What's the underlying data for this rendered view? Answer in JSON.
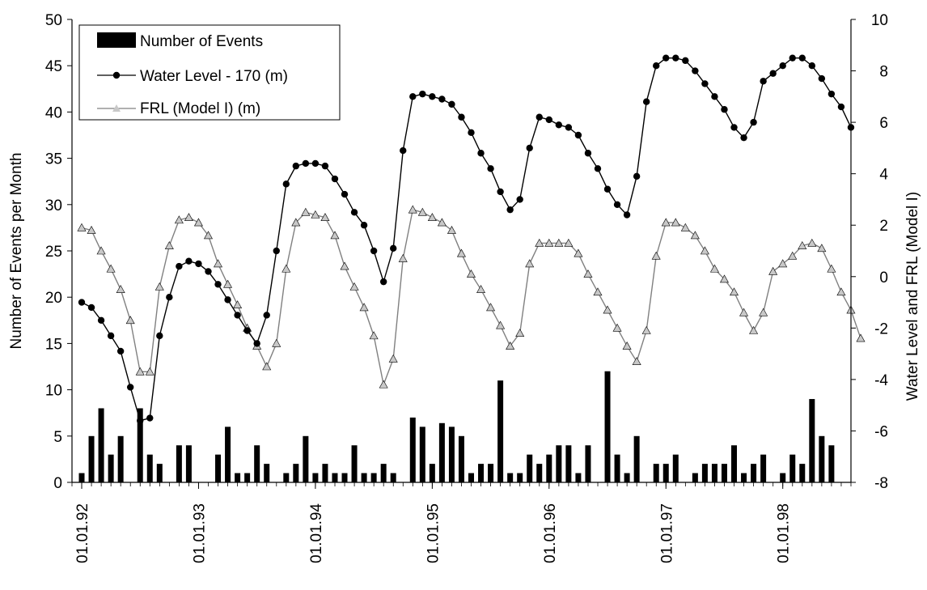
{
  "chart_data": {
    "type": "bar+line",
    "title": "",
    "ylabel_left": "Number of Events per Month",
    "ylabel_right": "Water Level and FRL (Model I)",
    "ylim_left": [
      0,
      50
    ],
    "ylim_right": [
      -8,
      10
    ],
    "yticks_left": [
      "0",
      "5",
      "10",
      "15",
      "20",
      "25",
      "30",
      "35",
      "40",
      "45",
      "50"
    ],
    "yticks_right": [
      "-8",
      "-6",
      "-4",
      "-2",
      "0",
      "2",
      "4",
      "6",
      "8",
      "10"
    ],
    "x_tick_labels": [
      "01.01.92",
      "01.01.93",
      "01.01.94",
      "01.01.95",
      "01.01.96",
      "01.01.97",
      "01.01.98"
    ],
    "x_start_month": "1992-01",
    "grid": false,
    "legend_position": "top-left",
    "colors": {
      "bars": "#000000",
      "water_level": "#000000",
      "frl": "#808080",
      "frl_marker": "#c8c8c8"
    },
    "legend": {
      "events": "Number of Events",
      "water": "Water Level - 170 (m)",
      "frl": "FRL (Model I) (m)"
    },
    "series": [
      {
        "name": "Number of Events",
        "kind": "bar",
        "axis": "left",
        "values": [
          1,
          5,
          8,
          3,
          5,
          0,
          8,
          3,
          2,
          0,
          4,
          4,
          0,
          0,
          3,
          6,
          1,
          1,
          4,
          2,
          0,
          1,
          2,
          5,
          1,
          2,
          1,
          1,
          4,
          1,
          1,
          2,
          1,
          0,
          7,
          6,
          2,
          6.4,
          6,
          5,
          1,
          2,
          2,
          11,
          1,
          1,
          3,
          2,
          3,
          4,
          4,
          1,
          4,
          0,
          12,
          3,
          1,
          5,
          0,
          2,
          2,
          3,
          0,
          1,
          2,
          2,
          2,
          4,
          1,
          2,
          3,
          0,
          1,
          3,
          2,
          9,
          5,
          4
        ]
      },
      {
        "name": "Water Level - 170 (m)",
        "kind": "line",
        "axis": "right",
        "values": [
          -1.0,
          -1.2,
          -1.7,
          -2.3,
          -2.9,
          -4.3,
          -5.6,
          -5.5,
          -2.3,
          -0.8,
          0.4,
          0.6,
          0.5,
          0.2,
          -0.3,
          -0.9,
          -1.5,
          -2.1,
          -2.6,
          -1.5,
          1.0,
          3.6,
          4.3,
          4.4,
          4.4,
          4.3,
          3.8,
          3.2,
          2.5,
          2.0,
          1.0,
          -0.2,
          1.1,
          4.9,
          7.0,
          7.1,
          7.0,
          6.9,
          6.7,
          6.2,
          5.6,
          4.8,
          4.2,
          3.3,
          2.6,
          3.0,
          5.0,
          6.2,
          6.1,
          5.9,
          5.8,
          5.5,
          4.8,
          4.2,
          3.4,
          2.8,
          2.4,
          3.9,
          6.8,
          8.2,
          8.5,
          8.5,
          8.4,
          8.0,
          7.5,
          7.0,
          6.5,
          5.8,
          5.4,
          6.0,
          7.6,
          7.9,
          8.2,
          8.5,
          8.5,
          8.2,
          7.7,
          7.1,
          6.6,
          5.8
        ]
      },
      {
        "name": "FRL (Model I) (m)",
        "kind": "line",
        "axis": "right",
        "values": [
          1.9,
          1.8,
          1.0,
          0.3,
          -0.5,
          -1.7,
          -3.7,
          -3.7,
          -0.4,
          1.2,
          2.2,
          2.3,
          2.1,
          1.6,
          0.5,
          -0.3,
          -1.1,
          -2.0,
          -2.7,
          -3.5,
          -2.6,
          0.3,
          2.1,
          2.5,
          2.4,
          2.3,
          1.6,
          0.4,
          -0.4,
          -1.2,
          -2.3,
          -4.2,
          -3.2,
          0.7,
          2.6,
          2.5,
          2.3,
          2.1,
          1.8,
          0.9,
          0.1,
          -0.5,
          -1.2,
          -1.9,
          -2.7,
          -2.2,
          0.5,
          1.3,
          1.3,
          1.3,
          1.3,
          0.9,
          0.1,
          -0.6,
          -1.3,
          -2.0,
          -2.7,
          -3.3,
          -2.1,
          0.8,
          2.1,
          2.1,
          1.9,
          1.6,
          1.0,
          0.3,
          -0.1,
          -0.6,
          -1.4,
          -2.1,
          -1.4,
          0.2,
          0.5,
          0.8,
          1.2,
          1.3,
          1.1,
          0.3,
          -0.6,
          -1.3,
          -2.4
        ]
      }
    ]
  }
}
